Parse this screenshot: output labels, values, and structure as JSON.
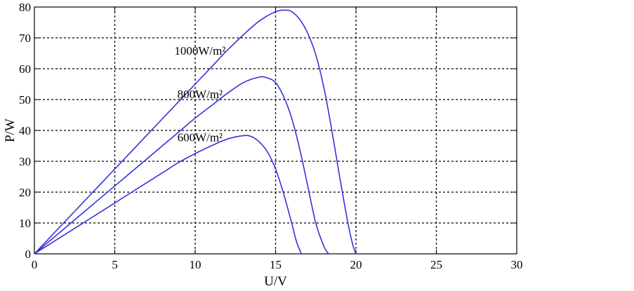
{
  "chart_data": {
    "type": "line",
    "title": "",
    "xlabel": "U/V",
    "ylabel": "P/W",
    "xlim": [
      0,
      30
    ],
    "ylim": [
      0,
      80
    ],
    "xticks": [
      0,
      5,
      10,
      15,
      20,
      25,
      30
    ],
    "yticks": [
      0,
      10,
      20,
      30,
      40,
      50,
      60,
      70,
      80
    ],
    "grid": true,
    "grid_style": "dashed",
    "line_color": "#3333dd",
    "series": [
      {
        "label": "1000W/m²",
        "x": [
          0,
          1,
          2,
          3,
          4,
          5,
          6,
          7,
          8,
          9,
          10,
          11,
          12,
          13,
          14,
          15,
          15.6,
          16,
          16.5,
          17,
          17.5,
          18,
          18.5,
          19,
          19.5,
          19.8,
          20
        ],
        "y": [
          0,
          5.5,
          11,
          16.5,
          22,
          27.5,
          33,
          38.5,
          44,
          49.5,
          55,
          60.5,
          66,
          71,
          75.5,
          78.5,
          79,
          78.5,
          76,
          71.5,
          64.5,
          54,
          40,
          24.5,
          10,
          3,
          0
        ]
      },
      {
        "label": "800W/m²",
        "x": [
          0,
          1,
          2,
          3,
          4,
          5,
          6,
          7,
          8,
          9,
          10,
          11,
          12,
          13,
          14,
          14.5,
          15,
          15.5,
          16,
          16.5,
          17,
          17.5,
          18,
          18.3
        ],
        "y": [
          0,
          4.4,
          8.8,
          13.2,
          17.6,
          22,
          26.4,
          30.8,
          35.2,
          39.6,
          44,
          48,
          52,
          55.5,
          57.3,
          57,
          55.5,
          51,
          44,
          34,
          22,
          10,
          2.5,
          0
        ]
      },
      {
        "label": "600W/m²",
        "x": [
          0,
          1,
          2,
          3,
          4,
          5,
          6,
          7,
          8,
          9,
          10,
          11,
          12,
          13,
          13.5,
          14,
          14.5,
          15,
          15.5,
          16,
          16.3,
          16.6
        ],
        "y": [
          0,
          3.3,
          6.6,
          9.9,
          13.2,
          16.5,
          19.8,
          23.1,
          26.4,
          29.7,
          32.5,
          35,
          37.2,
          38.3,
          38,
          36.2,
          33,
          27.5,
          19.5,
          10,
          4,
          0
        ]
      }
    ]
  }
}
